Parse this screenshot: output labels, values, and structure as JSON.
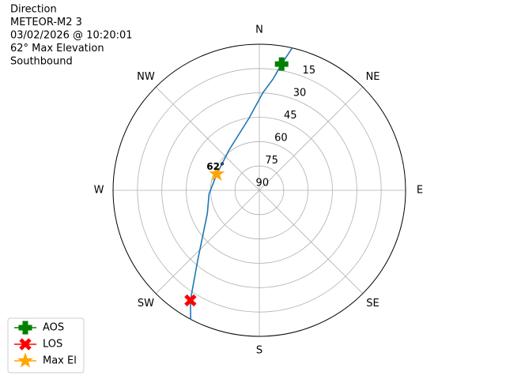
{
  "chart_data": {
    "type": "polar",
    "info": [
      "Direction",
      "METEOR-M2 3",
      "03/02/2026 @ 10:20:01",
      "62° Max Elevation",
      "Southbound"
    ],
    "angle_ticks": [
      {
        "value": 0,
        "label": "N"
      },
      {
        "value": 45,
        "label": "NE"
      },
      {
        "value": 90,
        "label": "E"
      },
      {
        "value": 135,
        "label": "SE"
      },
      {
        "value": 180,
        "label": "S"
      },
      {
        "value": 225,
        "label": "SW"
      },
      {
        "value": 270,
        "label": "W"
      },
      {
        "value": 315,
        "label": "NW"
      }
    ],
    "rlim": [
      90,
      0
    ],
    "rticks": [
      15,
      30,
      45,
      60,
      75,
      90
    ],
    "grid": true,
    "track": {
      "color": "#1f77b4",
      "x": [
        13,
        10,
        7,
        2,
        352,
        323,
        291,
        266,
        246,
        221,
        212,
        208
      ],
      "values": [
        0,
        11,
        21,
        30,
        45,
        59,
        62,
        59,
        55,
        32,
        10,
        0
      ]
    },
    "series": [
      {
        "name": "AOS",
        "color": "#008000",
        "marker": "plus",
        "x": [
          10
        ],
        "values": [
          11
        ]
      },
      {
        "name": "LOS",
        "color": "#ff0000",
        "marker": "x",
        "x": [
          212
        ],
        "values": [
          10
        ]
      },
      {
        "name": "Max El",
        "color": "#ffa500",
        "marker": "star",
        "x": [
          291
        ],
        "values": [
          62
        ]
      }
    ],
    "annotation": "62°",
    "legend": "lower left"
  }
}
